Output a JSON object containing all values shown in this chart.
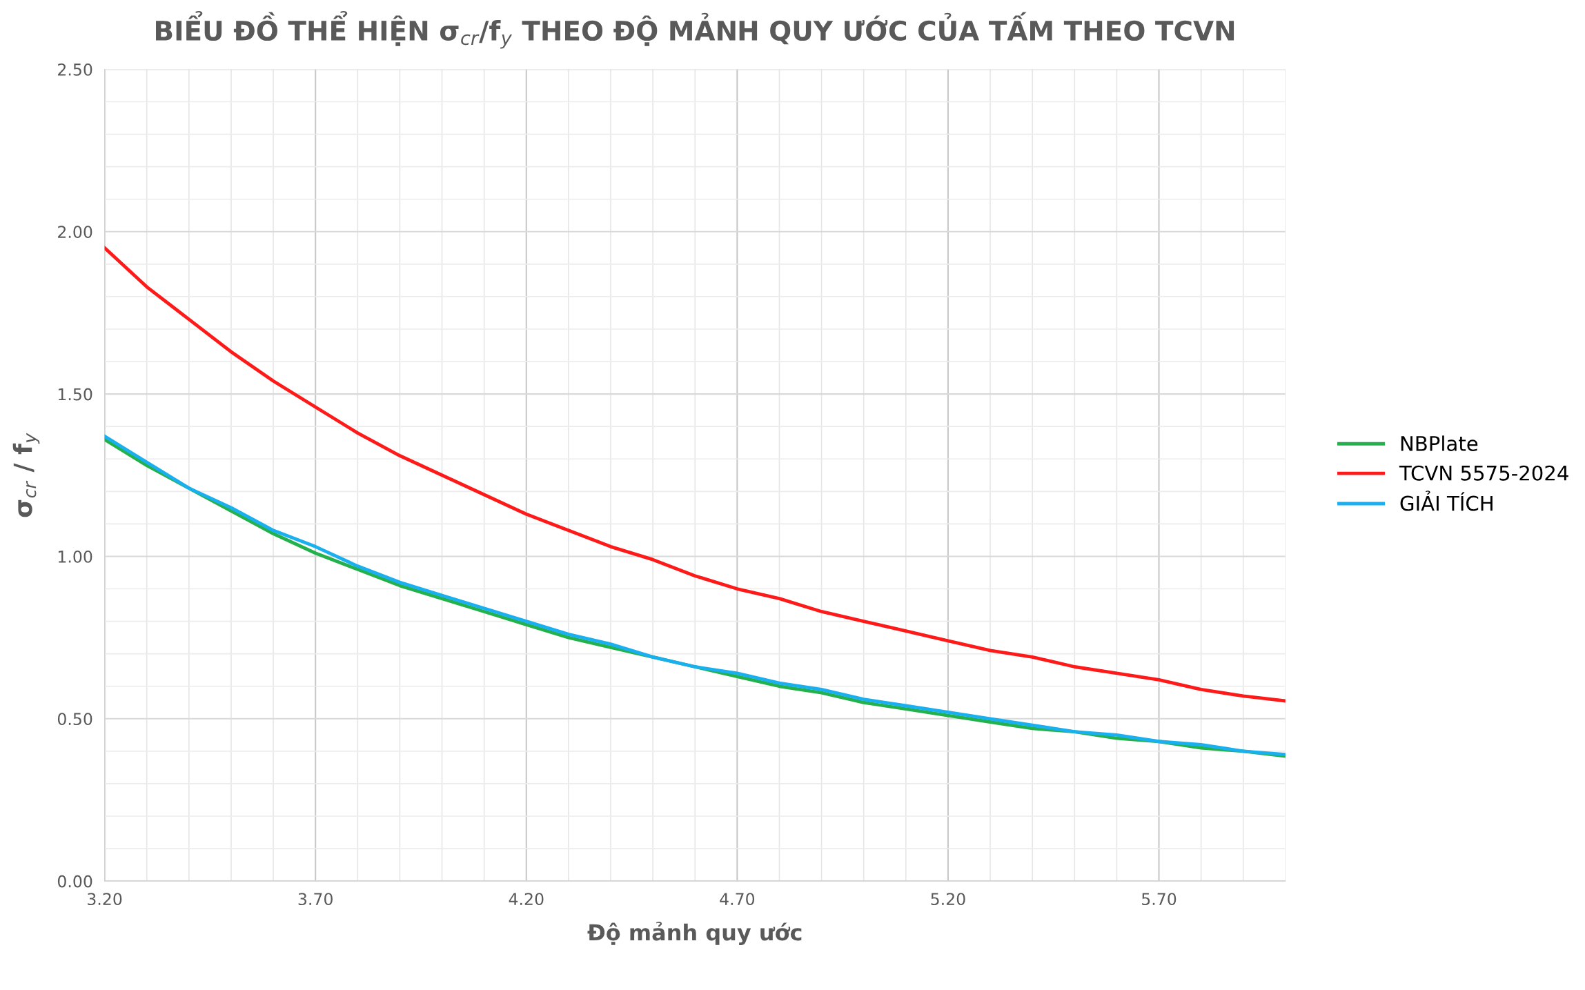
{
  "chart_data": {
    "type": "line",
    "title": "BIỂU ĐỒ THỂ HIỆN σ$_{cr}$/f$_{y}$ THEO ĐỘ MẢNH QUY ƯỚC CỦA TẤM THEO TCVN",
    "xlabel": "Độ mảnh quy ước",
    "ylabel": "σ$_{cr}$ / f$_{y}$",
    "x": [
      3.2,
      3.3,
      3.4,
      3.5,
      3.6,
      3.7,
      3.8,
      3.9,
      4.0,
      4.1,
      4.2,
      4.3,
      4.4,
      4.5,
      4.6,
      4.7,
      4.8,
      4.9,
      5.0,
      5.1,
      5.2,
      5.3,
      5.4,
      5.5,
      5.6,
      5.7,
      5.8,
      5.9,
      6.0
    ],
    "series": [
      {
        "name": "NBPlate",
        "color": "#22b14c",
        "values": [
          1.36,
          1.28,
          1.21,
          1.14,
          1.07,
          1.01,
          0.96,
          0.91,
          0.87,
          0.83,
          0.79,
          0.75,
          0.72,
          0.69,
          0.66,
          0.63,
          0.6,
          0.58,
          0.55,
          0.53,
          0.51,
          0.49,
          0.47,
          0.46,
          0.44,
          0.43,
          0.41,
          0.4,
          0.385
        ]
      },
      {
        "name": "TCVN 5575-2024",
        "color": "#ff1a1a",
        "values": [
          1.95,
          1.83,
          1.73,
          1.63,
          1.54,
          1.46,
          1.38,
          1.31,
          1.25,
          1.19,
          1.13,
          1.08,
          1.03,
          0.99,
          0.94,
          0.9,
          0.87,
          0.83,
          0.8,
          0.77,
          0.74,
          0.71,
          0.69,
          0.66,
          0.64,
          0.62,
          0.59,
          0.57,
          0.555
        ]
      },
      {
        "name": "GIẢI TÍCH",
        "color": "#1ab0f0",
        "values": [
          1.37,
          1.29,
          1.21,
          1.15,
          1.08,
          1.03,
          0.97,
          0.92,
          0.88,
          0.84,
          0.8,
          0.76,
          0.73,
          0.69,
          0.66,
          0.64,
          0.61,
          0.59,
          0.56,
          0.54,
          0.52,
          0.5,
          0.48,
          0.46,
          0.45,
          0.43,
          0.42,
          0.4,
          0.39
        ]
      }
    ],
    "xlim": [
      3.2,
      6.0
    ],
    "ylim": [
      0,
      2.5
    ],
    "xticks": [
      {
        "value": 3.2,
        "label": "3.20"
      },
      {
        "value": 3.3,
        "label": null
      },
      {
        "value": 3.4,
        "label": null
      },
      {
        "value": 3.5,
        "label": null
      },
      {
        "value": 3.6,
        "label": null
      },
      {
        "value": 3.7,
        "label": "3.70"
      },
      {
        "value": 3.8,
        "label": null
      },
      {
        "value": 3.9,
        "label": null
      },
      {
        "value": 4.0,
        "label": null
      },
      {
        "value": 4.1,
        "label": null
      },
      {
        "value": 4.2,
        "label": "4.20"
      },
      {
        "value": 4.3,
        "label": null
      },
      {
        "value": 4.4,
        "label": null
      },
      {
        "value": 4.5,
        "label": null
      },
      {
        "value": 4.6,
        "label": null
      },
      {
        "value": 4.7,
        "label": "4.70"
      },
      {
        "value": 4.8,
        "label": null
      },
      {
        "value": 4.9,
        "label": null
      },
      {
        "value": 5.0,
        "label": null
      },
      {
        "value": 5.1,
        "label": null
      },
      {
        "value": 5.2,
        "label": "5.20"
      },
      {
        "value": 5.3,
        "label": null
      },
      {
        "value": 5.4,
        "label": null
      },
      {
        "value": 5.5,
        "label": null
      },
      {
        "value": 5.6,
        "label": null
      },
      {
        "value": 5.7,
        "label": "5.70"
      },
      {
        "value": 5.8,
        "label": null
      },
      {
        "value": 5.9,
        "label": null
      },
      {
        "value": 6.0,
        "label": null
      }
    ],
    "yticks": [
      {
        "value": 0,
        "label": "0.00"
      },
      {
        "value": 0.1,
        "label": null
      },
      {
        "value": 0.2,
        "label": null
      },
      {
        "value": 0.3,
        "label": null
      },
      {
        "value": 0.4,
        "label": null
      },
      {
        "value": 0.5,
        "label": "0.50"
      },
      {
        "value": 0.6,
        "label": null
      },
      {
        "value": 0.7,
        "label": null
      },
      {
        "value": 0.8,
        "label": null
      },
      {
        "value": 0.9,
        "label": null
      },
      {
        "value": 1.0,
        "label": "1.00"
      },
      {
        "value": 1.1,
        "label": null
      },
      {
        "value": 1.2,
        "label": null
      },
      {
        "value": 1.3,
        "label": null
      },
      {
        "value": 1.4,
        "label": null
      },
      {
        "value": 1.5,
        "label": "1.50"
      },
      {
        "value": 1.6,
        "label": null
      },
      {
        "value": 1.7,
        "label": null
      },
      {
        "value": 1.8,
        "label": null
      },
      {
        "value": 1.9,
        "label": null
      },
      {
        "value": 2.0,
        "label": "2.00"
      },
      {
        "value": 2.1,
        "label": null
      },
      {
        "value": 2.2,
        "label": null
      },
      {
        "value": 2.3,
        "label": null
      },
      {
        "value": 2.4,
        "label": null
      },
      {
        "value": 2.5,
        "label": "2.50"
      }
    ],
    "grid": true,
    "legend": "right",
    "marker": "none",
    "line_style": "solid"
  }
}
